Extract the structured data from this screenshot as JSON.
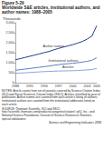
{
  "chart_data": {
    "type": "line",
    "title": "Figure 5-29",
    "subtitle": "Worldwide S&E articles, institutional authors, and author names: 1988–2005",
    "y_label": "Thousands",
    "categories": [
      "1988",
      null,
      null,
      "1991",
      null,
      null,
      "1994",
      null,
      null,
      "1997",
      null,
      null,
      "2000",
      null,
      null,
      "2003",
      null,
      "2005"
    ],
    "series": [
      {
        "name": "Author names",
        "color": "#1f3f8f",
        "values": [
          1150,
          1200,
          1260,
          1320,
          1380,
          1440,
          1500,
          1560,
          1640,
          1710,
          1780,
          1840,
          1900,
          1980,
          2060,
          2180,
          2330,
          2850
        ]
      },
      {
        "name": "Institutional authors",
        "color": "#5b7fc2",
        "values": [
          620,
          650,
          680,
          710,
          740,
          770,
          800,
          830,
          870,
          900,
          930,
          950,
          970,
          1000,
          1030,
          1070,
          1120,
          1250
        ]
      },
      {
        "name": "Articles",
        "color": "#8aa6d6",
        "values": [
          466,
          480,
          495,
          510,
          525,
          540,
          555,
          565,
          575,
          585,
          590,
          595,
          600,
          610,
          625,
          640,
          660,
          710
        ]
      }
    ],
    "ylim": [
      0,
      3000
    ],
    "yticks": [
      0,
      500,
      {
        "value": 1000,
        "label": "1,000"
      },
      {
        "value": 1500,
        "label": "1,500"
      },
      {
        "value": 2000,
        "label": "2,000"
      },
      {
        "value": 2500,
        "label": "2,500"
      },
      {
        "value": 3000,
        "label": "3,000"
      }
    ],
    "grid": false,
    "notes": "NOTES: Article counts from set of journals covered by Science Citation Index (SCI) and Social Sciences Citation Index (SSCI). Articles classified by year of publication. Author names are counted from each article's listing of authors; institutional authors are counted from the institutional addresses listed on each article.",
    "source": "SOURCE: Thomson Scientific, SCI and SSCI, http://scientific.thomson.com/products/categories/citation/; ipIQ, Inc.; and National Science Foundation, Division of Science Resources Statistics, special tabulations.",
    "credit": "Science and Engineering Indicators 2008"
  }
}
